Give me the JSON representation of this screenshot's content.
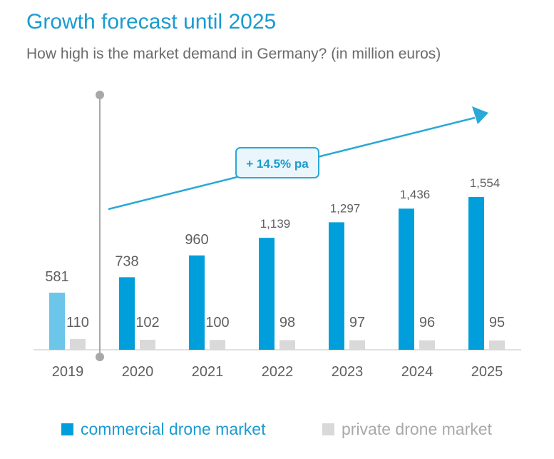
{
  "title": "Growth forecast until 2025",
  "subtitle": "How high is the market demand in Germany? (in million euros)",
  "annotation": "+ 14.5% pa",
  "colors": {
    "commercial": "#009fdb",
    "commercial_2019": "#6bc6ea",
    "private": "#d9d9d9",
    "title": "#1a9bd0",
    "text": "#5f5f5f",
    "arrow": "#2aa8d8",
    "marker_line": "#a8a8a8"
  },
  "legend": {
    "commercial": "commercial drone market",
    "private": "private drone market"
  },
  "chart_data": {
    "type": "bar",
    "categories": [
      "2019",
      "2020",
      "2021",
      "2022",
      "2023",
      "2024",
      "2025"
    ],
    "series": [
      {
        "name": "commercial drone market",
        "values": [
          581,
          738,
          960,
          1139,
          1297,
          1436,
          1554
        ],
        "labels": [
          "581",
          "738",
          "960",
          "1,139",
          "1,297",
          "1,436",
          "1,554"
        ]
      },
      {
        "name": "private drone market",
        "values": [
          110,
          102,
          100,
          98,
          97,
          96,
          95
        ],
        "labels": [
          "110",
          "102",
          "100",
          "98",
          "97",
          "96",
          "95"
        ]
      }
    ],
    "title": "Growth forecast until 2025",
    "subtitle": "How high is the market demand in Germany? (in million euros)",
    "annotation": "+ 14.5% pa",
    "legend_position": "bottom",
    "grid": false
  }
}
